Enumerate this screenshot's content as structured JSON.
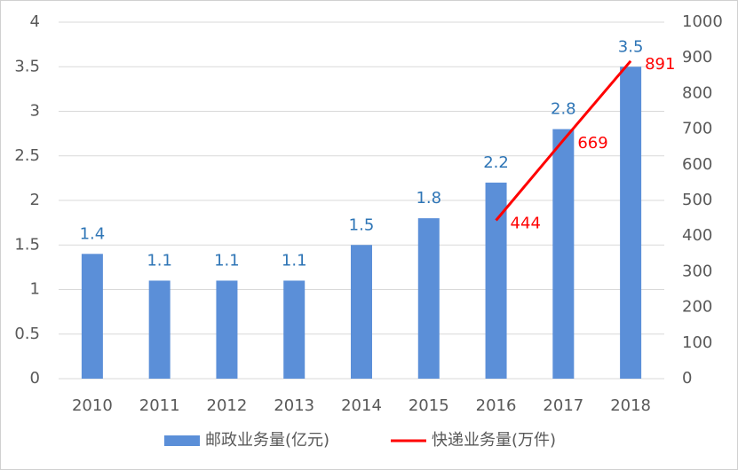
{
  "chart_data": {
    "type": "bar",
    "categories": [
      "2010",
      "2011",
      "2012",
      "2013",
      "2014",
      "2015",
      "2016",
      "2017",
      "2018"
    ],
    "series": [
      {
        "name": "邮政业务量(亿元)",
        "color": "#5b8fd8",
        "values": [
          1.4,
          1.1,
          1.1,
          1.1,
          1.5,
          1.8,
          2.2,
          2.8,
          3.5
        ]
      },
      {
        "name": "快递业务量(万件)",
        "color": "#ff0000",
        "type": "line",
        "axis": "y2",
        "values": [
          null,
          null,
          null,
          null,
          null,
          null,
          444,
          669,
          891
        ]
      }
    ],
    "ylim": [
      0,
      4
    ],
    "yticks": [
      0,
      0.5,
      1,
      1.5,
      2,
      2.5,
      3,
      3.5,
      4
    ],
    "y2lim": [
      0,
      1000
    ],
    "y2ticks": [
      0,
      100,
      200,
      300,
      400,
      500,
      600,
      700,
      800,
      900,
      1000
    ],
    "grid": true,
    "legend": "bottom"
  }
}
